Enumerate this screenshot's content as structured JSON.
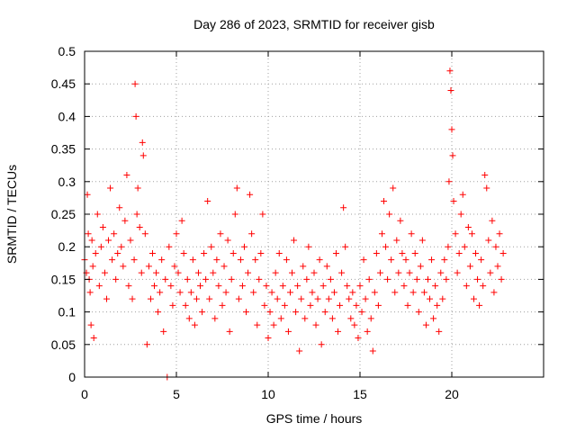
{
  "chart_data": {
    "type": "scatter",
    "title": "Day 286 of 2023, SRMTID for receiver gisb",
    "xlabel": "GPS time / hours",
    "ylabel": "SRMTID / TECUs",
    "xlim": [
      0,
      25
    ],
    "ylim": [
      0,
      0.5
    ],
    "xticks": [
      "0",
      "5",
      "10",
      "15",
      "20"
    ],
    "xtick_values": [
      0,
      5,
      10,
      15,
      20
    ],
    "yticks": [
      "0",
      "0.05",
      "0.1",
      "0.15",
      "0.2",
      "0.25",
      "0.3",
      "0.35",
      "0.4",
      "0.45",
      "0.5"
    ],
    "ytick_values": [
      0,
      0.05,
      0.1,
      0.15,
      0.2,
      0.25,
      0.3,
      0.35,
      0.4,
      0.45,
      0.5
    ],
    "grid": true,
    "marker": "+",
    "color": "#ff0000",
    "series": [
      {
        "name": "gisb",
        "points": [
          [
            0.0,
            0.18
          ],
          [
            0.1,
            0.16
          ],
          [
            0.15,
            0.28
          ],
          [
            0.2,
            0.22
          ],
          [
            0.25,
            0.15
          ],
          [
            0.3,
            0.13
          ],
          [
            0.35,
            0.08
          ],
          [
            0.4,
            0.21
          ],
          [
            0.45,
            0.17
          ],
          [
            0.5,
            0.06
          ],
          [
            0.6,
            0.19
          ],
          [
            0.7,
            0.25
          ],
          [
            0.8,
            0.14
          ],
          [
            0.9,
            0.2
          ],
          [
            1.0,
            0.23
          ],
          [
            1.1,
            0.16
          ],
          [
            1.2,
            0.12
          ],
          [
            1.3,
            0.21
          ],
          [
            1.4,
            0.29
          ],
          [
            1.5,
            0.18
          ],
          [
            1.6,
            0.22
          ],
          [
            1.7,
            0.15
          ],
          [
            1.8,
            0.19
          ],
          [
            1.9,
            0.26
          ],
          [
            2.0,
            0.2
          ],
          [
            2.1,
            0.17
          ],
          [
            2.2,
            0.24
          ],
          [
            2.3,
            0.31
          ],
          [
            2.4,
            0.14
          ],
          [
            2.5,
            0.21
          ],
          [
            2.6,
            0.12
          ],
          [
            2.7,
            0.18
          ],
          [
            2.75,
            0.45
          ],
          [
            2.8,
            0.4
          ],
          [
            2.85,
            0.25
          ],
          [
            2.9,
            0.29
          ],
          [
            3.0,
            0.23
          ],
          [
            3.1,
            0.16
          ],
          [
            3.15,
            0.36
          ],
          [
            3.2,
            0.34
          ],
          [
            3.3,
            0.22
          ],
          [
            3.4,
            0.05
          ],
          [
            3.5,
            0.17
          ],
          [
            3.6,
            0.12
          ],
          [
            3.7,
            0.19
          ],
          [
            3.8,
            0.14
          ],
          [
            3.9,
            0.16
          ],
          [
            4.0,
            0.1
          ],
          [
            4.1,
            0.13
          ],
          [
            4.2,
            0.18
          ],
          [
            4.3,
            0.07
          ],
          [
            4.4,
            0.15
          ],
          [
            4.5,
            0.0
          ],
          [
            4.6,
            0.2
          ],
          [
            4.7,
            0.14
          ],
          [
            4.8,
            0.11
          ],
          [
            4.9,
            0.17
          ],
          [
            5.0,
            0.22
          ],
          [
            5.1,
            0.16
          ],
          [
            5.2,
            0.13
          ],
          [
            5.3,
            0.24
          ],
          [
            5.4,
            0.19
          ],
          [
            5.5,
            0.11
          ],
          [
            5.6,
            0.15
          ],
          [
            5.7,
            0.09
          ],
          [
            5.8,
            0.13
          ],
          [
            5.9,
            0.18
          ],
          [
            6.0,
            0.08
          ],
          [
            6.1,
            0.12
          ],
          [
            6.2,
            0.16
          ],
          [
            6.3,
            0.14
          ],
          [
            6.4,
            0.1
          ],
          [
            6.5,
            0.19
          ],
          [
            6.6,
            0.15
          ],
          [
            6.7,
            0.27
          ],
          [
            6.8,
            0.12
          ],
          [
            6.9,
            0.2
          ],
          [
            7.0,
            0.16
          ],
          [
            7.1,
            0.09
          ],
          [
            7.2,
            0.18
          ],
          [
            7.3,
            0.14
          ],
          [
            7.4,
            0.22
          ],
          [
            7.5,
            0.11
          ],
          [
            7.6,
            0.17
          ],
          [
            7.7,
            0.13
          ],
          [
            7.8,
            0.21
          ],
          [
            7.9,
            0.07
          ],
          [
            8.0,
            0.15
          ],
          [
            8.1,
            0.19
          ],
          [
            8.2,
            0.25
          ],
          [
            8.3,
            0.29
          ],
          [
            8.4,
            0.12
          ],
          [
            8.5,
            0.18
          ],
          [
            8.6,
            0.14
          ],
          [
            8.7,
            0.2
          ],
          [
            8.8,
            0.1
          ],
          [
            8.9,
            0.16
          ],
          [
            9.0,
            0.28
          ],
          [
            9.1,
            0.22
          ],
          [
            9.2,
            0.13
          ],
          [
            9.3,
            0.18
          ],
          [
            9.4,
            0.08
          ],
          [
            9.5,
            0.15
          ],
          [
            9.6,
            0.19
          ],
          [
            9.7,
            0.25
          ],
          [
            9.8,
            0.11
          ],
          [
            9.9,
            0.14
          ],
          [
            10.0,
            0.06
          ],
          [
            10.1,
            0.1
          ],
          [
            10.2,
            0.13
          ],
          [
            10.3,
            0.08
          ],
          [
            10.4,
            0.16
          ],
          [
            10.5,
            0.12
          ],
          [
            10.6,
            0.19
          ],
          [
            10.7,
            0.09
          ],
          [
            10.8,
            0.14
          ],
          [
            10.9,
            0.11
          ],
          [
            11.0,
            0.18
          ],
          [
            11.1,
            0.07
          ],
          [
            11.2,
            0.13
          ],
          [
            11.3,
            0.16
          ],
          [
            11.4,
            0.21
          ],
          [
            11.5,
            0.1
          ],
          [
            11.6,
            0.14
          ],
          [
            11.7,
            0.04
          ],
          [
            11.8,
            0.12
          ],
          [
            11.9,
            0.17
          ],
          [
            12.0,
            0.09
          ],
          [
            12.1,
            0.15
          ],
          [
            12.2,
            0.2
          ],
          [
            12.3,
            0.11
          ],
          [
            12.4,
            0.13
          ],
          [
            12.5,
            0.16
          ],
          [
            12.6,
            0.08
          ],
          [
            12.7,
            0.12
          ],
          [
            12.8,
            0.18
          ],
          [
            12.9,
            0.05
          ],
          [
            13.0,
            0.14
          ],
          [
            13.1,
            0.1
          ],
          [
            13.2,
            0.17
          ],
          [
            13.3,
            0.12
          ],
          [
            13.4,
            0.15
          ],
          [
            13.5,
            0.09
          ],
          [
            13.6,
            0.13
          ],
          [
            13.7,
            0.19
          ],
          [
            13.8,
            0.07
          ],
          [
            13.9,
            0.11
          ],
          [
            14.0,
            0.16
          ],
          [
            14.1,
            0.26
          ],
          [
            14.2,
            0.2
          ],
          [
            14.3,
            0.14
          ],
          [
            14.4,
            0.12
          ],
          [
            14.5,
            0.09
          ],
          [
            14.6,
            0.13
          ],
          [
            14.7,
            0.08
          ],
          [
            14.8,
            0.11
          ],
          [
            14.9,
            0.06
          ],
          [
            15.0,
            0.14
          ],
          [
            15.1,
            0.1
          ],
          [
            15.2,
            0.18
          ],
          [
            15.3,
            0.12
          ],
          [
            15.4,
            0.07
          ],
          [
            15.5,
            0.15
          ],
          [
            15.6,
            0.09
          ],
          [
            15.7,
            0.04
          ],
          [
            15.8,
            0.13
          ],
          [
            15.9,
            0.19
          ],
          [
            16.0,
            0.11
          ],
          [
            16.1,
            0.16
          ],
          [
            16.2,
            0.22
          ],
          [
            16.3,
            0.27
          ],
          [
            16.4,
            0.2
          ],
          [
            16.5,
            0.15
          ],
          [
            16.6,
            0.25
          ],
          [
            16.7,
            0.18
          ],
          [
            16.8,
            0.29
          ],
          [
            16.9,
            0.13
          ],
          [
            17.0,
            0.21
          ],
          [
            17.1,
            0.16
          ],
          [
            17.2,
            0.24
          ],
          [
            17.3,
            0.19
          ],
          [
            17.4,
            0.14
          ],
          [
            17.5,
            0.18
          ],
          [
            17.6,
            0.11
          ],
          [
            17.7,
            0.16
          ],
          [
            17.8,
            0.22
          ],
          [
            17.9,
            0.13
          ],
          [
            18.0,
            0.19
          ],
          [
            18.1,
            0.15
          ],
          [
            18.2,
            0.1
          ],
          [
            18.3,
            0.17
          ],
          [
            18.4,
            0.21
          ],
          [
            18.5,
            0.13
          ],
          [
            18.6,
            0.08
          ],
          [
            18.7,
            0.15
          ],
          [
            18.8,
            0.12
          ],
          [
            18.9,
            0.18
          ],
          [
            19.0,
            0.09
          ],
          [
            19.1,
            0.14
          ],
          [
            19.2,
            0.11
          ],
          [
            19.3,
            0.07
          ],
          [
            19.4,
            0.16
          ],
          [
            19.5,
            0.12
          ],
          [
            19.6,
            0.18
          ],
          [
            19.7,
            0.15
          ],
          [
            19.8,
            0.2
          ],
          [
            19.85,
            0.3
          ],
          [
            19.9,
            0.47
          ],
          [
            19.95,
            0.44
          ],
          [
            20.0,
            0.38
          ],
          [
            20.05,
            0.34
          ],
          [
            20.1,
            0.27
          ],
          [
            20.2,
            0.22
          ],
          [
            20.3,
            0.16
          ],
          [
            20.4,
            0.19
          ],
          [
            20.5,
            0.25
          ],
          [
            20.6,
            0.28
          ],
          [
            20.7,
            0.2
          ],
          [
            20.8,
            0.14
          ],
          [
            20.9,
            0.23
          ],
          [
            21.0,
            0.17
          ],
          [
            21.1,
            0.22
          ],
          [
            21.2,
            0.12
          ],
          [
            21.3,
            0.19
          ],
          [
            21.4,
            0.15
          ],
          [
            21.5,
            0.11
          ],
          [
            21.6,
            0.18
          ],
          [
            21.7,
            0.14
          ],
          [
            21.8,
            0.31
          ],
          [
            21.9,
            0.29
          ],
          [
            22.0,
            0.21
          ],
          [
            22.1,
            0.16
          ],
          [
            22.2,
            0.24
          ],
          [
            22.3,
            0.13
          ],
          [
            22.4,
            0.2
          ],
          [
            22.5,
            0.17
          ],
          [
            22.6,
            0.22
          ],
          [
            22.7,
            0.15
          ],
          [
            22.8,
            0.19
          ]
        ]
      }
    ]
  }
}
